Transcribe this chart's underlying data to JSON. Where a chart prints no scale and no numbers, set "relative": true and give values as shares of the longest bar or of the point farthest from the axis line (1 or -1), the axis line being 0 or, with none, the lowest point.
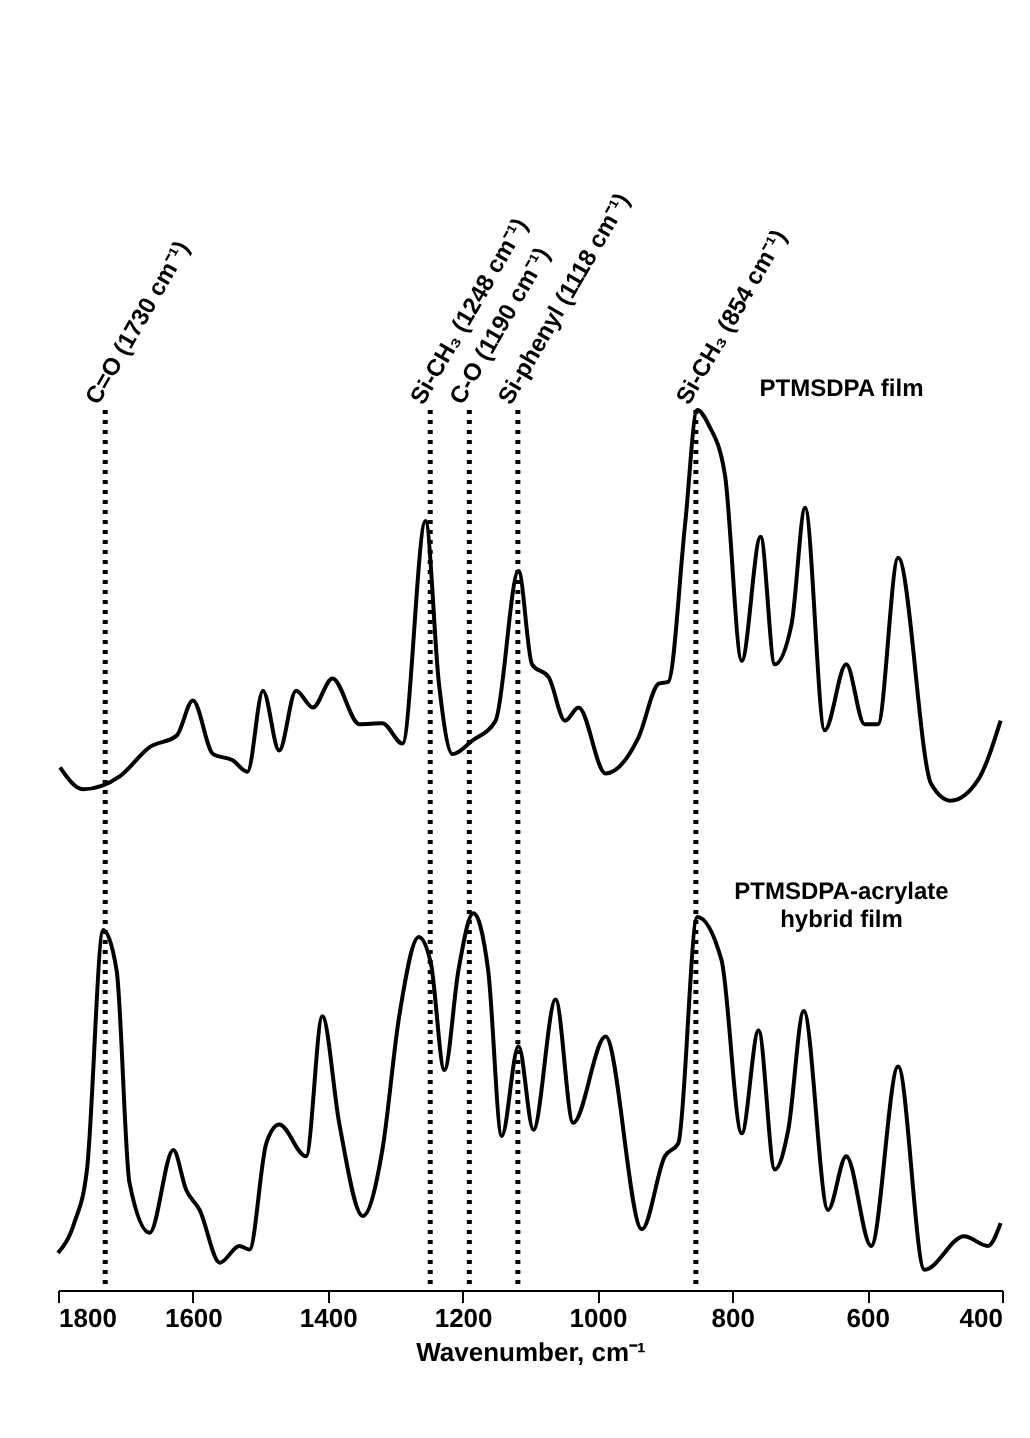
{
  "chart_data": {
    "type": "line",
    "relative": true,
    "xlabel": "Wavenumber, cm⁻¹",
    "xlim": [
      1800,
      400
    ],
    "xticks": [
      1800,
      1600,
      1400,
      1200,
      1000,
      800,
      600,
      400
    ],
    "grid": false,
    "marker": "none",
    "line_style": "solid",
    "series": [
      {
        "name": "PTMSDPA film",
        "color": "#000000",
        "x": [
          1797,
          1763,
          1708,
          1664,
          1624,
          1600,
          1570,
          1541,
          1519,
          1496,
          1472,
          1447,
          1422,
          1393,
          1353,
          1319,
          1289,
          1255,
          1235,
          1215,
          1186,
          1151,
          1117,
          1097,
          1072,
          1048,
          1028,
          988,
          939,
          909,
          895,
          870,
          852,
          835,
          811,
          786,
          758,
          737,
          712,
          692,
          663,
          631,
          604,
          584,
          554,
          505,
          476,
          436,
          402
        ],
        "values": [
          0.594,
          0.569,
          0.584,
          0.617,
          0.63,
          0.67,
          0.609,
          0.602,
          0.589,
          0.681,
          0.613,
          0.681,
          0.662,
          0.695,
          0.643,
          0.644,
          0.621,
          0.874,
          0.689,
          0.609,
          0.624,
          0.647,
          0.817,
          0.711,
          0.696,
          0.647,
          0.662,
          0.587,
          0.628,
          0.689,
          0.691,
          0.87,
          1.0,
          0.983,
          0.927,
          0.715,
          0.856,
          0.711,
          0.757,
          0.889,
          0.636,
          0.711,
          0.643,
          0.643,
          0.832,
          0.575,
          0.556,
          0.579,
          0.647
        ]
      },
      {
        "name": "PTMSDPA-acrylate\nhybrid film",
        "color": "#000000",
        "x": [
          1800,
          1776,
          1757,
          1733,
          1713,
          1694,
          1664,
          1629,
          1610,
          1590,
          1560,
          1531,
          1516,
          1491,
          1472,
          1432,
          1408,
          1383,
          1348,
          1319,
          1294,
          1265,
          1247,
          1227,
          1206,
          1184,
          1162,
          1142,
          1117,
          1095,
          1062,
          1036,
          988,
          934,
          900,
          880,
          852,
          816,
          786,
          761,
          737,
          717,
          694,
          658,
          631,
          594,
          554,
          515,
          456,
          421,
          402
        ],
        "values": [
          0.042,
          0.076,
          0.137,
          0.409,
          0.363,
          0.122,
          0.065,
          0.159,
          0.114,
          0.091,
          0.031,
          0.05,
          0.046,
          0.167,
          0.188,
          0.152,
          0.311,
          0.19,
          0.084,
          0.159,
          0.311,
          0.401,
          0.371,
          0.25,
          0.364,
          0.428,
          0.363,
          0.175,
          0.277,
          0.182,
          0.33,
          0.19,
          0.288,
          0.069,
          0.152,
          0.167,
          0.424,
          0.375,
          0.178,
          0.295,
          0.137,
          0.182,
          0.317,
          0.091,
          0.152,
          0.05,
          0.254,
          0.023,
          0.061,
          0.05,
          0.076
        ]
      }
    ],
    "ref_lines": [
      {
        "axis": "x",
        "value": 1730,
        "label": "C=O (1730 cm⁻¹)",
        "color": "#000000",
        "line_style": "dotted"
      },
      {
        "axis": "x",
        "value": 1248,
        "label": "Si-CH₃ (1248 cm⁻¹)",
        "color": "#000000",
        "line_style": "dotted"
      },
      {
        "axis": "x",
        "value": 1190,
        "label": "C-O (1190 cm⁻¹)",
        "color": "#000000",
        "line_style": "dotted"
      },
      {
        "axis": "x",
        "value": 1118,
        "label": "Si-phenyl (1118 cm⁻¹)",
        "color": "#000000",
        "line_style": "dotted"
      },
      {
        "axis": "x",
        "value": 854,
        "label": "Si-CH₃ (854 cm⁻¹)",
        "color": "#000000",
        "line_style": "dotted"
      }
    ]
  }
}
